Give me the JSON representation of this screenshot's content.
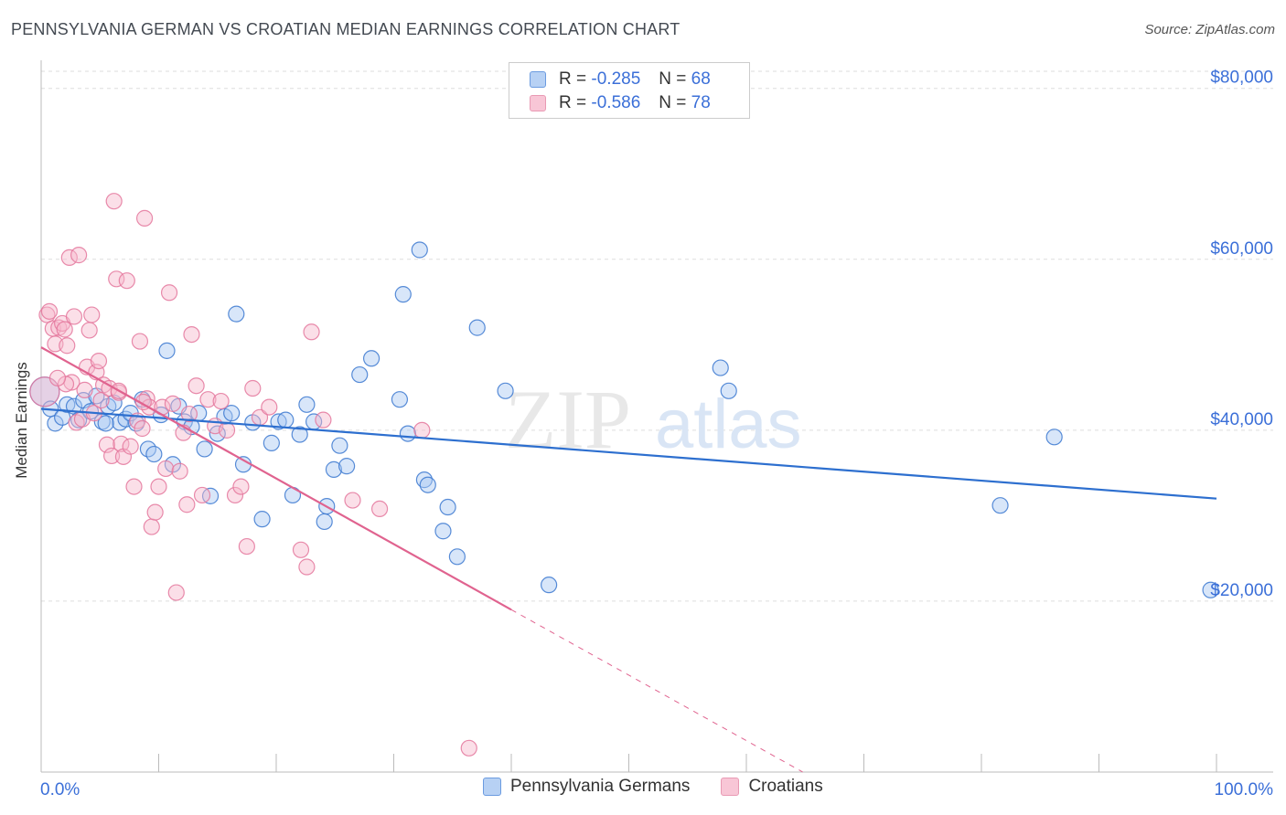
{
  "header": {
    "title": "PENNSYLVANIA GERMAN VS CROATIAN MEDIAN EARNINGS CORRELATION CHART",
    "source": "Source: ZipAtlas.com"
  },
  "legend_stats": {
    "r_label": "R =",
    "n_label": "N =",
    "series": [
      {
        "r": "-0.285",
        "n": "68"
      },
      {
        "r": "-0.586",
        "n": "78"
      }
    ]
  },
  "watermark": {
    "part1": "ZIP",
    "part2": "atlas"
  },
  "colors": {
    "blue_fill": "#a9c8f2",
    "blue_stroke": "#3b78d0",
    "blue_line": "#2d6fcf",
    "pink_fill": "#f6b8cc",
    "pink_stroke": "#e4779c",
    "pink_line": "#e0638f",
    "axis_text_blue": "#3b6fd8",
    "grid": "#dddddd"
  },
  "chart_data": {
    "type": "scatter",
    "title": "PENNSYLVANIA GERMAN VS CROATIAN MEDIAN EARNINGS CORRELATION CHART",
    "xlabel": "",
    "ylabel": "Median Earnings",
    "xlim": [
      0,
      100
    ],
    "ylim": [
      0,
      82000
    ],
    "x_tick_labels": [
      "0.0%",
      "100.0%"
    ],
    "y_ticks": [
      20000,
      40000,
      60000,
      80000
    ],
    "y_tick_labels": [
      "$20,000",
      "$40,000",
      "$60,000",
      "$80,000"
    ],
    "grid": true,
    "legend_position": "bottom",
    "series": [
      {
        "name": "Pennsylvania Germans",
        "r": -0.285,
        "n": 68,
        "trend": {
          "x0": 0,
          "y0": 42500,
          "x1": 100,
          "y1": 32000
        },
        "points": [
          [
            0.3,
            44500
          ],
          [
            0.8,
            42500
          ],
          [
            1.2,
            40800
          ],
          [
            1.8,
            41500
          ],
          [
            2.2,
            43000
          ],
          [
            2.8,
            42800
          ],
          [
            3.2,
            41200
          ],
          [
            3.6,
            43500
          ],
          [
            4.2,
            42200
          ],
          [
            4.7,
            44000
          ],
          [
            5.2,
            41000
          ],
          [
            5.7,
            42800
          ],
          [
            6.2,
            43200
          ],
          [
            6.7,
            40900
          ],
          [
            7.2,
            41300
          ],
          [
            7.6,
            42000
          ],
          [
            8.1,
            40800
          ],
          [
            8.6,
            43600
          ],
          [
            9.1,
            37800
          ],
          [
            9.6,
            37200
          ],
          [
            10.2,
            41800
          ],
          [
            10.7,
            49300
          ],
          [
            11.2,
            36000
          ],
          [
            11.7,
            42800
          ],
          [
            12.2,
            41000
          ],
          [
            12.8,
            40400
          ],
          [
            13.4,
            42000
          ],
          [
            13.9,
            37800
          ],
          [
            14.4,
            32300
          ],
          [
            15.0,
            39600
          ],
          [
            15.6,
            41600
          ],
          [
            16.2,
            42000
          ],
          [
            16.6,
            53600
          ],
          [
            17.2,
            36000
          ],
          [
            18.0,
            40900
          ],
          [
            18.8,
            29600
          ],
          [
            19.6,
            38500
          ],
          [
            20.2,
            41000
          ],
          [
            20.8,
            41200
          ],
          [
            21.4,
            32400
          ],
          [
            22.0,
            39500
          ],
          [
            22.6,
            43000
          ],
          [
            23.2,
            41000
          ],
          [
            24.1,
            29300
          ],
          [
            24.3,
            31100
          ],
          [
            24.9,
            35400
          ],
          [
            25.4,
            38200
          ],
          [
            26.0,
            35800
          ],
          [
            27.1,
            46500
          ],
          [
            28.1,
            48400
          ],
          [
            30.5,
            43600
          ],
          [
            30.8,
            55900
          ],
          [
            31.2,
            39600
          ],
          [
            32.2,
            61100
          ],
          [
            32.6,
            34200
          ],
          [
            32.9,
            33600
          ],
          [
            34.2,
            28200
          ],
          [
            34.6,
            31000
          ],
          [
            35.4,
            25200
          ],
          [
            37.1,
            52000
          ],
          [
            39.5,
            44600
          ],
          [
            43.2,
            21900
          ],
          [
            57.8,
            47300
          ],
          [
            58.5,
            44600
          ],
          [
            81.6,
            31200
          ],
          [
            86.2,
            39200
          ],
          [
            99.5,
            21300
          ],
          [
            5.5,
            40800
          ]
        ]
      },
      {
        "name": "Croatians",
        "r": -0.586,
        "n": 78,
        "trend": {
          "x0": 0,
          "y0": 49700,
          "x1": 40,
          "y1": 19000
        },
        "trend_dashed_to": {
          "x": 64.8,
          "y": 0
        },
        "points": [
          [
            0.3,
            44500
          ],
          [
            0.5,
            53500
          ],
          [
            0.7,
            53900
          ],
          [
            1.0,
            51900
          ],
          [
            1.2,
            50100
          ],
          [
            1.5,
            52000
          ],
          [
            1.8,
            52500
          ],
          [
            2.0,
            51800
          ],
          [
            2.2,
            49900
          ],
          [
            2.4,
            60200
          ],
          [
            2.6,
            45600
          ],
          [
            2.8,
            53300
          ],
          [
            3.0,
            40900
          ],
          [
            3.2,
            60500
          ],
          [
            3.5,
            41300
          ],
          [
            3.7,
            44700
          ],
          [
            3.9,
            47400
          ],
          [
            4.1,
            51700
          ],
          [
            4.3,
            53500
          ],
          [
            4.5,
            42000
          ],
          [
            4.7,
            46800
          ],
          [
            4.9,
            48100
          ],
          [
            5.1,
            43500
          ],
          [
            5.3,
            45300
          ],
          [
            5.6,
            38300
          ],
          [
            5.8,
            44900
          ],
          [
            6.0,
            37000
          ],
          [
            6.2,
            66800
          ],
          [
            6.4,
            57700
          ],
          [
            6.6,
            44400
          ],
          [
            6.8,
            38400
          ],
          [
            7.0,
            36900
          ],
          [
            7.3,
            57500
          ],
          [
            7.6,
            38100
          ],
          [
            7.9,
            33400
          ],
          [
            8.2,
            41100
          ],
          [
            8.4,
            50400
          ],
          [
            8.6,
            40200
          ],
          [
            8.8,
            64800
          ],
          [
            9.0,
            43700
          ],
          [
            9.2,
            42700
          ],
          [
            9.4,
            28700
          ],
          [
            9.7,
            30400
          ],
          [
            10.0,
            33400
          ],
          [
            10.3,
            42700
          ],
          [
            10.6,
            35500
          ],
          [
            10.9,
            56100
          ],
          [
            11.2,
            43100
          ],
          [
            11.5,
            21000
          ],
          [
            11.8,
            35200
          ],
          [
            12.1,
            39700
          ],
          [
            12.4,
            31300
          ],
          [
            12.8,
            51200
          ],
          [
            13.2,
            45200
          ],
          [
            13.7,
            32400
          ],
          [
            14.2,
            43600
          ],
          [
            14.8,
            40500
          ],
          [
            15.3,
            43400
          ],
          [
            15.8,
            40000
          ],
          [
            16.5,
            32400
          ],
          [
            17.0,
            33400
          ],
          [
            17.5,
            26400
          ],
          [
            18.0,
            44900
          ],
          [
            18.6,
            41500
          ],
          [
            19.4,
            42700
          ],
          [
            22.1,
            26000
          ],
          [
            22.6,
            24000
          ],
          [
            23.0,
            51500
          ],
          [
            24.0,
            41200
          ],
          [
            26.5,
            31800
          ],
          [
            28.8,
            30800
          ],
          [
            32.4,
            40000
          ],
          [
            36.4,
            2800
          ],
          [
            2.1,
            45400
          ],
          [
            6.6,
            44600
          ],
          [
            8.7,
            43300
          ],
          [
            12.6,
            41900
          ],
          [
            1.4,
            46100
          ]
        ]
      }
    ]
  }
}
